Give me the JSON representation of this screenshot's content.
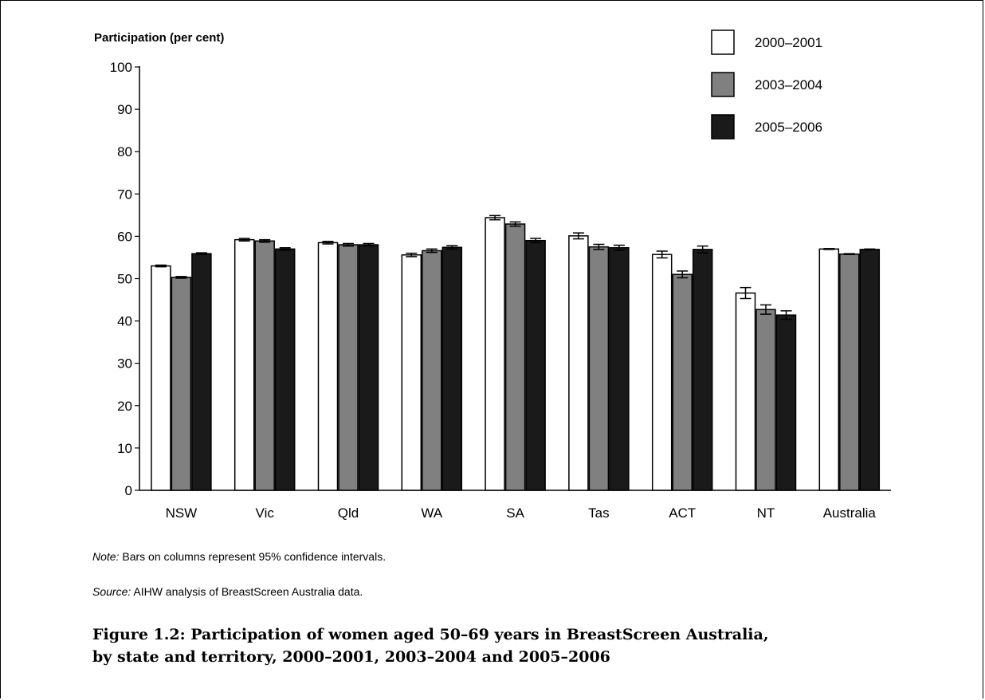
{
  "chart_data": {
    "type": "bar",
    "ylabel": "Participation (per cent)",
    "ylim": [
      0,
      100
    ],
    "yticks": [
      0,
      10,
      20,
      30,
      40,
      50,
      60,
      70,
      80,
      90,
      100
    ],
    "categories": [
      "NSW",
      "Vic",
      "Qld",
      "WA",
      "SA",
      "Tas",
      "ACT",
      "NT",
      "Australia"
    ],
    "legend_position": "top-right",
    "grid": false,
    "error_bars": "95% confidence intervals",
    "series": [
      {
        "name": "2000–2001",
        "color": "#ffffff",
        "values": [
          53.0,
          59.2,
          58.5,
          55.6,
          64.4,
          60.1,
          55.7,
          46.6,
          57.0
        ],
        "errors": [
          0.2,
          0.3,
          0.3,
          0.4,
          0.5,
          0.7,
          0.8,
          1.3,
          0.1
        ]
      },
      {
        "name": "2003–2004",
        "color": "#808080",
        "values": [
          50.3,
          58.9,
          58.0,
          56.6,
          62.9,
          57.5,
          51.0,
          42.7,
          55.8
        ],
        "errors": [
          0.2,
          0.3,
          0.3,
          0.4,
          0.5,
          0.6,
          0.8,
          1.1,
          0.1
        ]
      },
      {
        "name": "2005–2006",
        "color": "#1a1a1a",
        "values": [
          55.9,
          57.0,
          58.0,
          57.4,
          59.0,
          57.3,
          56.9,
          41.4,
          56.9
        ],
        "errors": [
          0.2,
          0.3,
          0.3,
          0.4,
          0.5,
          0.6,
          0.8,
          1.0,
          0.1
        ]
      }
    ]
  },
  "note": {
    "label": "Note:",
    "text": " Bars on columns represent 95% confidence intervals."
  },
  "source": {
    "label": "Source:",
    "text": " AIHW analysis of BreastScreen Australia data."
  },
  "caption": {
    "line1": "Figure 1.2: Participation of women aged 50–69 years in BreastScreen Australia,",
    "line2": "by state and territory, 2000–2001, 2003–2004 and 2005–2006"
  }
}
